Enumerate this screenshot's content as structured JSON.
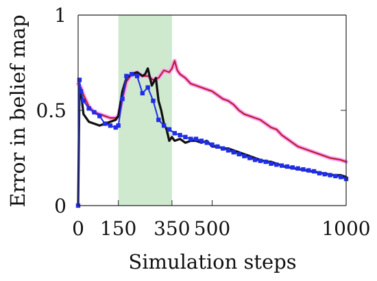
{
  "chart_data": {
    "type": "line",
    "xlabel": "Simulation steps",
    "ylabel": "Error in belief map",
    "x_ticks": [
      0,
      150,
      350,
      500,
      1000
    ],
    "y_ticks": [
      0,
      0.5,
      1
    ],
    "xlim": [
      0,
      1000
    ],
    "ylim": [
      0,
      1
    ],
    "highlight_band": {
      "x_start": 150,
      "x_end": 350,
      "color": "#cfe9cf"
    },
    "grid": false,
    "legend": "none",
    "series": [
      {
        "color": "#ff99ff",
        "style": "thick-line",
        "x": [
          0,
          10,
          20,
          40,
          60,
          80,
          100,
          120,
          140,
          150,
          165,
          180,
          200,
          220,
          240,
          260,
          280,
          300,
          320,
          340,
          350,
          360,
          370,
          380,
          390,
          400,
          420,
          440,
          460,
          480,
          500,
          520,
          540,
          560,
          580,
          600,
          620,
          640,
          660,
          680,
          700,
          720,
          740,
          760,
          780,
          800,
          820,
          840,
          860,
          880,
          900,
          920,
          940,
          960,
          980,
          1000
        ],
        "y": [
          0.64,
          0.62,
          0.58,
          0.52,
          0.49,
          0.48,
          0.47,
          0.46,
          0.46,
          0.47,
          0.56,
          0.65,
          0.69,
          0.7,
          0.68,
          0.68,
          0.66,
          0.67,
          0.71,
          0.7,
          0.72,
          0.76,
          0.71,
          0.69,
          0.68,
          0.67,
          0.64,
          0.63,
          0.62,
          0.61,
          0.6,
          0.58,
          0.56,
          0.55,
          0.53,
          0.5,
          0.48,
          0.47,
          0.46,
          0.45,
          0.43,
          0.41,
          0.4,
          0.37,
          0.35,
          0.33,
          0.31,
          0.3,
          0.29,
          0.28,
          0.27,
          0.26,
          0.25,
          0.245,
          0.24,
          0.23
        ]
      },
      {
        "color": "#b22222",
        "style": "line",
        "x": [
          0,
          10,
          20,
          40,
          60,
          80,
          100,
          120,
          140,
          150,
          165,
          180,
          200,
          220,
          240,
          260,
          280,
          300,
          320,
          340,
          350,
          360,
          370,
          380,
          390,
          400,
          420,
          440,
          460,
          480,
          500,
          520,
          540,
          560,
          580,
          600,
          620,
          640,
          660,
          680,
          700,
          720,
          740,
          760,
          780,
          800,
          820,
          840,
          860,
          880,
          900,
          920,
          940,
          960,
          980,
          1000
        ],
        "y": [
          0.64,
          0.62,
          0.58,
          0.52,
          0.49,
          0.48,
          0.47,
          0.46,
          0.46,
          0.47,
          0.56,
          0.65,
          0.69,
          0.7,
          0.68,
          0.68,
          0.66,
          0.67,
          0.71,
          0.7,
          0.72,
          0.76,
          0.71,
          0.69,
          0.68,
          0.67,
          0.64,
          0.63,
          0.62,
          0.61,
          0.6,
          0.58,
          0.56,
          0.55,
          0.53,
          0.5,
          0.48,
          0.47,
          0.46,
          0.45,
          0.43,
          0.41,
          0.4,
          0.37,
          0.35,
          0.33,
          0.31,
          0.3,
          0.29,
          0.28,
          0.27,
          0.26,
          0.25,
          0.245,
          0.24,
          0.23
        ]
      },
      {
        "color": "#111111",
        "style": "line",
        "x": [
          0,
          5,
          10,
          20,
          40,
          60,
          80,
          100,
          120,
          140,
          150,
          165,
          180,
          200,
          220,
          240,
          250,
          260,
          275,
          290,
          300,
          310,
          320,
          330,
          340,
          350,
          360,
          380,
          400,
          420,
          440,
          460,
          480,
          500,
          520,
          540,
          560,
          580,
          600,
          620,
          640,
          660,
          680,
          700,
          720,
          740,
          760,
          780,
          800,
          820,
          840,
          860,
          880,
          900,
          920,
          940,
          960,
          980,
          1000
        ],
        "y": [
          0.0,
          0.62,
          0.6,
          0.48,
          0.44,
          0.43,
          0.42,
          0.43,
          0.44,
          0.45,
          0.47,
          0.6,
          0.67,
          0.69,
          0.7,
          0.68,
          0.69,
          0.72,
          0.63,
          0.67,
          0.55,
          0.5,
          0.43,
          0.4,
          0.34,
          0.36,
          0.34,
          0.35,
          0.33,
          0.34,
          0.34,
          0.33,
          0.34,
          0.31,
          0.31,
          0.3,
          0.3,
          0.29,
          0.28,
          0.27,
          0.26,
          0.25,
          0.24,
          0.23,
          0.23,
          0.22,
          0.21,
          0.2,
          0.2,
          0.19,
          0.19,
          0.18,
          0.18,
          0.17,
          0.17,
          0.16,
          0.16,
          0.16,
          0.15
        ]
      },
      {
        "color": "#1f2ee6",
        "style": "marker-line",
        "x": [
          0,
          5,
          10,
          20,
          40,
          60,
          80,
          100,
          120,
          140,
          150,
          165,
          180,
          200,
          220,
          240,
          260,
          280,
          300,
          320,
          340,
          360,
          380,
          400,
          420,
          440,
          460,
          480,
          500,
          520,
          540,
          560,
          580,
          600,
          620,
          640,
          660,
          680,
          700,
          720,
          740,
          760,
          780,
          800,
          820,
          840,
          860,
          880,
          900,
          920,
          940,
          960,
          980,
          1000
        ],
        "y": [
          0.0,
          0.66,
          0.6,
          0.55,
          0.51,
          0.49,
          0.47,
          0.43,
          0.42,
          0.41,
          0.42,
          0.56,
          0.68,
          0.69,
          0.68,
          0.59,
          0.62,
          0.55,
          0.45,
          0.42,
          0.4,
          0.38,
          0.37,
          0.36,
          0.35,
          0.35,
          0.34,
          0.33,
          0.32,
          0.31,
          0.3,
          0.29,
          0.28,
          0.27,
          0.26,
          0.25,
          0.24,
          0.235,
          0.23,
          0.22,
          0.215,
          0.21,
          0.205,
          0.2,
          0.195,
          0.19,
          0.185,
          0.18,
          0.17,
          0.165,
          0.16,
          0.155,
          0.15,
          0.14
        ]
      }
    ]
  }
}
